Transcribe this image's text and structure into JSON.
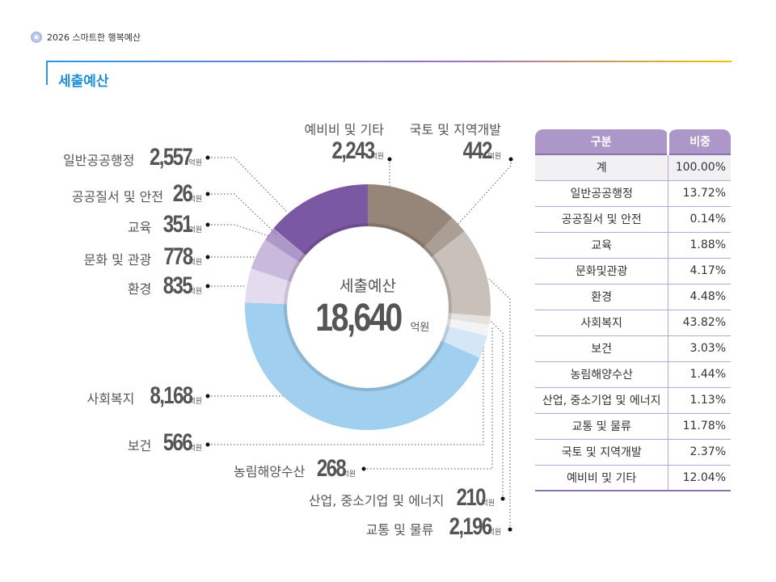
{
  "header": {
    "doc_title": "2026 스마트한 행복예산",
    "section_title": "세출예산"
  },
  "chart_data": {
    "type": "pie",
    "title": "세출예산",
    "total": 18640,
    "total_label": "18,640",
    "unit": "억원",
    "categories": [
      "예비비 및 기타",
      "국토 및 지역개발",
      "교통 및 물류",
      "산업, 중소기업 및 에너지",
      "농림해양수산",
      "보건",
      "사회복지",
      "환경",
      "문화 및 관광",
      "교육",
      "공공질서 및 안전",
      "일반공공행정"
    ],
    "values": [
      2243,
      442,
      2196,
      210,
      268,
      566,
      8168,
      835,
      778,
      351,
      26,
      2557
    ],
    "value_labels": [
      "2,243",
      "442",
      "2,196",
      "210",
      "268",
      "566",
      "8,168",
      "835",
      "778",
      "351",
      "26",
      "2,557"
    ],
    "colors": [
      "#968579",
      "#ab9e94",
      "#c9c0b9",
      "#e6e2df",
      "#f3f3f5",
      "#d3e7f7",
      "#a0cff0",
      "#e4dcee",
      "#c9badd",
      "#ae98c9",
      "#5a3f82",
      "#7b58a4"
    ]
  },
  "table": {
    "headers": [
      "구분",
      "비중"
    ],
    "rows": [
      [
        "계",
        "100.00%"
      ],
      [
        "일반공공행정",
        "13.72%"
      ],
      [
        "공공질서 및 안전",
        "0.14%"
      ],
      [
        "교육",
        "1.88%"
      ],
      [
        "문화및관광",
        "4.17%"
      ],
      [
        "환경",
        "4.48%"
      ],
      [
        "사회복지",
        "43.82%"
      ],
      [
        "보건",
        "3.03%"
      ],
      [
        "농림해양수산",
        "1.44%"
      ],
      [
        "산업, 중소기업 및 에너지",
        "1.13%"
      ],
      [
        "교통 및 물류",
        "11.78%"
      ],
      [
        "국토 및 지역개발",
        "2.37%"
      ],
      [
        "예비비 및 기타",
        "12.04%"
      ]
    ]
  }
}
